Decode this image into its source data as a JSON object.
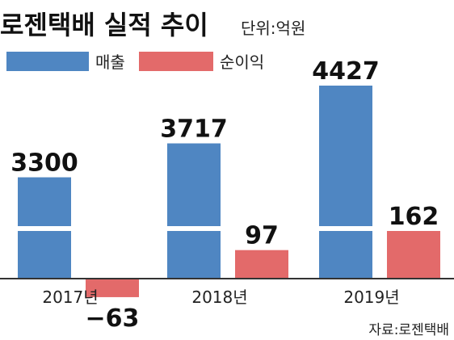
{
  "title": "로젠택배 실적 추이",
  "unit": "단위:억원",
  "source": "자료:로젠택배",
  "colors": {
    "sales": "#4f86c2",
    "profit": "#e36a6a"
  },
  "chart_data": {
    "type": "bar",
    "title": "로젠택배 실적 추이",
    "categories": [
      "2017년",
      "2018년",
      "2019년"
    ],
    "series": [
      {
        "name": "매출",
        "values": [
          3300,
          3717,
          4427
        ]
      },
      {
        "name": "순이익",
        "values": [
          -63,
          97,
          162
        ]
      }
    ],
    "value_labels": [
      [
        "3300",
        "3717",
        "4427"
      ],
      [
        "−63",
        "97",
        "162"
      ]
    ],
    "axis_break": true,
    "legend": "top-left",
    "grid": false
  }
}
